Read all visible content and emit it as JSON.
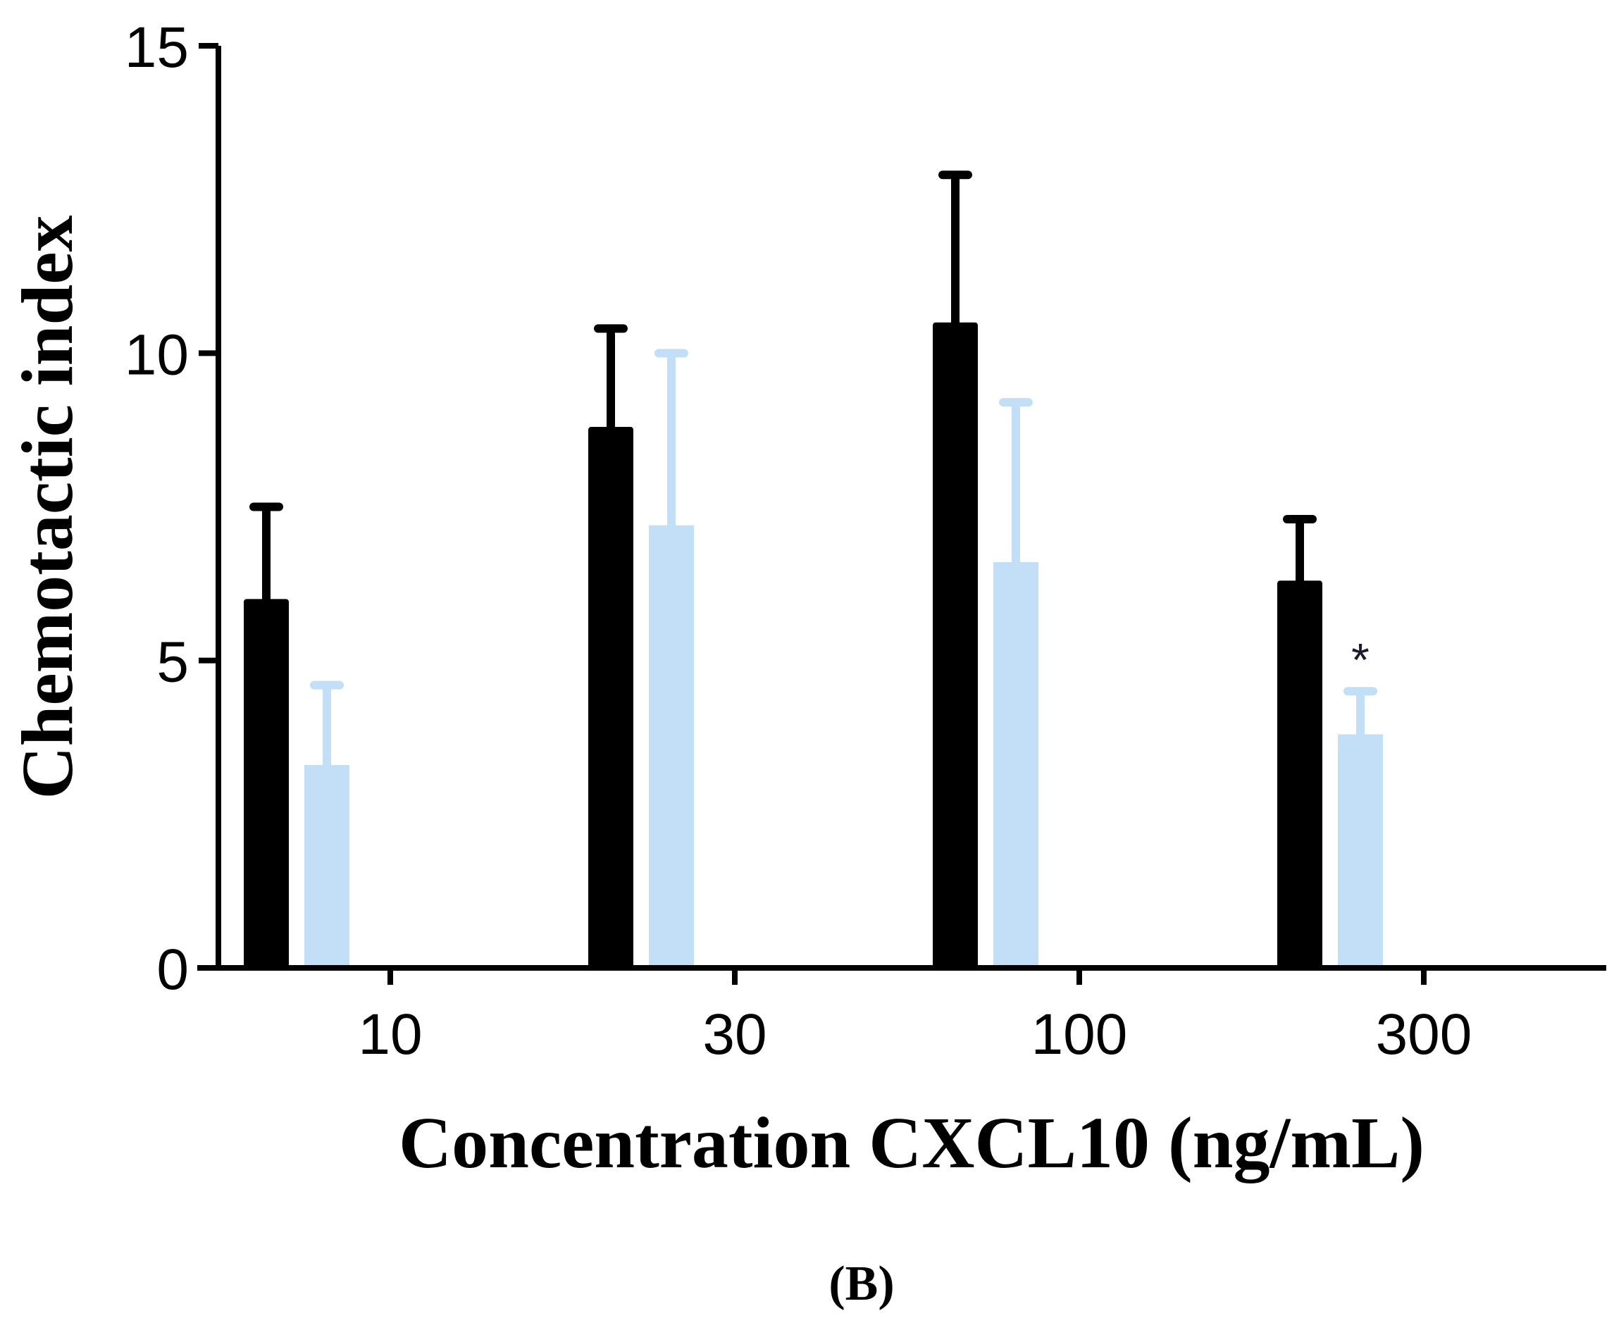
{
  "chart_data": {
    "type": "bar",
    "title": "",
    "xlabel": "Concentration CXCL10 (ng/mL)",
    "ylabel": "Chemotactic index",
    "ylim": [
      0,
      15
    ],
    "yticks": [
      0,
      5,
      10,
      15
    ],
    "y_tick_labels": [
      "0",
      "5",
      "10",
      "15"
    ],
    "categories": [
      "10",
      "30",
      "100",
      "300"
    ],
    "grid": false,
    "legend": "none",
    "series": [
      {
        "name": "Series 1",
        "color": "#000000",
        "values": [
          6.0,
          8.8,
          10.5,
          6.3
        ],
        "errors": [
          1.5,
          1.6,
          2.4,
          1.0
        ]
      },
      {
        "name": "Series 2",
        "color": "#c2dff7",
        "values": [
          3.3,
          7.2,
          6.6,
          3.8
        ],
        "errors": [
          1.3,
          2.8,
          2.6,
          0.7
        ]
      }
    ],
    "annotations": [
      {
        "text": "*",
        "category": "300",
        "series": 1
      }
    ],
    "panel_label": "(B)"
  }
}
